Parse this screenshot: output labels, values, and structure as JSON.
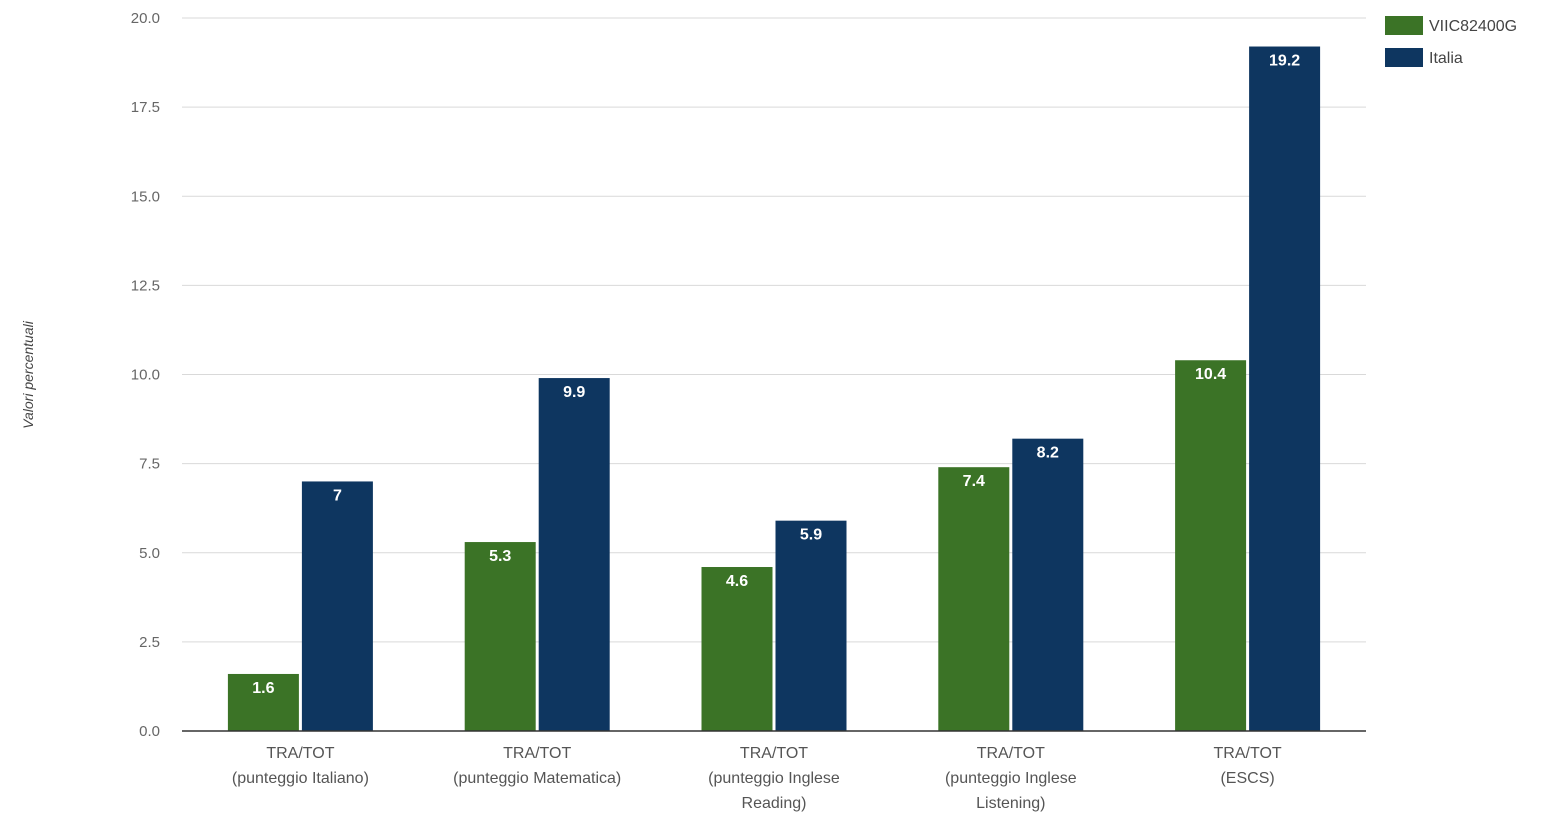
{
  "chart_data": {
    "type": "bar",
    "title": "",
    "xlabel": "",
    "ylabel": "Valori percentuali",
    "ylim": [
      0,
      20
    ],
    "yticks": [
      "0.0",
      "2.5",
      "5.0",
      "7.5",
      "10.0",
      "12.5",
      "15.0",
      "17.5",
      "20.0"
    ],
    "categories": [
      [
        "TRA/TOT",
        "(punteggio Italiano)"
      ],
      [
        "TRA/TOT",
        "(punteggio Matematica)"
      ],
      [
        "TRA/TOT",
        "(punteggio Inglese",
        "Reading)"
      ],
      [
        "TRA/TOT",
        "(punteggio Inglese",
        "Listening)"
      ],
      [
        "TRA/TOT",
        "(ESCS)"
      ]
    ],
    "series": [
      {
        "name": "VIIC82400G",
        "color": "#3b7326",
        "values": [
          1.6,
          5.3,
          4.6,
          7.4,
          10.4
        ],
        "labels": [
          "1.6",
          "5.3",
          "4.6",
          "7.4",
          "10.4"
        ]
      },
      {
        "name": "Italia",
        "color": "#0e3660",
        "values": [
          7,
          9.9,
          5.9,
          8.2,
          19.2
        ],
        "labels": [
          "7",
          "9.9",
          "5.9",
          "8.2",
          "19.2"
        ]
      }
    ],
    "grid": true,
    "legend_position": "top-right"
  }
}
